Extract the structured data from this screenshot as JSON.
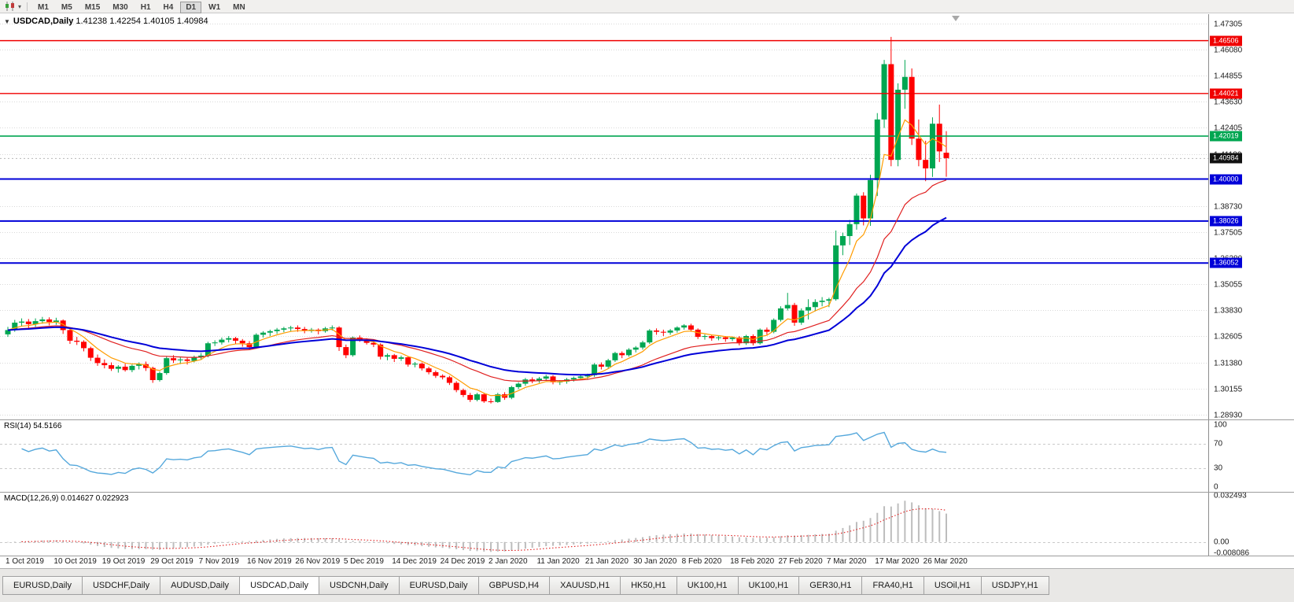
{
  "toolbar": {
    "timeframes": [
      "M1",
      "M5",
      "M15",
      "M30",
      "H1",
      "H4",
      "D1",
      "W1",
      "MN"
    ],
    "active_timeframe": "D1",
    "dropdown_glyph": "▾"
  },
  "chart": {
    "collapse_glyph": "▼",
    "symbol_title": "USDCAD,Daily",
    "ohlc_text": "1.41238 1.42254 1.40105 1.40984",
    "current_price": "1.40984",
    "current_price_badge_color": "#111111",
    "price_ticks": [
      "1.47305",
      "1.46080",
      "1.44855",
      "1.43630",
      "1.42405",
      "1.41180",
      "1.38730",
      "1.37505",
      "1.36280",
      "1.35055",
      "1.33830",
      "1.32605",
      "1.31380",
      "1.30155",
      "1.28930"
    ],
    "levels": [
      {
        "value": 1.46506,
        "label": "1.46506",
        "color": "#F00000",
        "width": 1.4
      },
      {
        "value": 1.44021,
        "label": "1.44021",
        "color": "#F00000",
        "width": 1.4
      },
      {
        "value": 1.42019,
        "label": "1.42019",
        "color": "#00A651",
        "width": 1.6
      },
      {
        "value": 1.4,
        "label": "1.40000",
        "color": "#0000D8",
        "width": 2
      },
      {
        "value": 1.38026,
        "label": "1.38026",
        "color": "#0000D8",
        "width": 2
      },
      {
        "value": 1.36052,
        "label": "1.36052",
        "color": "#0000D8",
        "width": 2
      }
    ]
  },
  "rsi": {
    "title": "RSI(14)",
    "value_text": "54.5166",
    "ticks": [
      "100",
      "70",
      "30",
      "0"
    ],
    "levels": [
      70,
      30
    ],
    "line_color": "#55A8DC"
  },
  "macd": {
    "title": "MACD(12,26,9)",
    "value_text": "0.014627 0.022923",
    "ticks": [
      "0.032493",
      "0.00",
      "-0.008086"
    ],
    "histogram_color": "#BDBDBD",
    "signal_color": "#E02020"
  },
  "tabs": {
    "active_index": 3,
    "items": [
      "EURUSD,Daily",
      "USDCHF,Daily",
      "AUDUSD,Daily",
      "USDCAD,Daily",
      "USDCNH,Daily",
      "EURUSD,Daily",
      "GBPUSD,H4",
      "XAUUSD,H1",
      "HK50,H1",
      "UK100,H1",
      "UK100,H1",
      "GER30,H1",
      "FRA40,H1",
      "USOil,H1",
      "USDJPY,H1"
    ]
  },
  "chart_data": {
    "type": "candlestick",
    "symbol": "USDCAD",
    "timeframe": "Daily",
    "price_range": [
      1.287,
      1.4775
    ],
    "label_every": 7,
    "x_labels": [
      "1 Oct 2019",
      "10 Oct 2019",
      "19 Oct 2019",
      "29 Oct 2019",
      "7 Nov 2019",
      "16 Nov 2019",
      "26 Nov 2019",
      "5 Dec 2019",
      "14 Dec 2019",
      "24 Dec 2019",
      "2 Jan 2020",
      "11 Jan 2020",
      "21 Jan 2020",
      "30 Jan 2020",
      "8 Feb 2020",
      "18 Feb 2020",
      "27 Feb 2020",
      "7 Mar 2020",
      "17 Mar 2020",
      "26 Mar 2020"
    ],
    "bull_color": "#00A651",
    "bear_color": "#FF0000",
    "ma_colors": [
      "#FF9C00",
      "#E02020",
      "#0000D8"
    ],
    "candles": [
      [
        1.327,
        1.3305,
        1.3258,
        1.329
      ],
      [
        1.329,
        1.3338,
        1.3282,
        1.3325
      ],
      [
        1.3325,
        1.3345,
        1.3308,
        1.333
      ],
      [
        1.333,
        1.3342,
        1.33,
        1.3318
      ],
      [
        1.3318,
        1.3345,
        1.3305,
        1.3332
      ],
      [
        1.3332,
        1.3352,
        1.332,
        1.334
      ],
      [
        1.334,
        1.335,
        1.3312,
        1.3328
      ],
      [
        1.3328,
        1.3348,
        1.3315,
        1.3335
      ],
      [
        1.3335,
        1.334,
        1.3272,
        1.329
      ],
      [
        1.329,
        1.3298,
        1.3225,
        1.324
      ],
      [
        1.324,
        1.3258,
        1.322,
        1.3235
      ],
      [
        1.3235,
        1.3242,
        1.319,
        1.3205
      ],
      [
        1.3205,
        1.3212,
        1.3145,
        1.316
      ],
      [
        1.316,
        1.3175,
        1.3122,
        1.3135
      ],
      [
        1.3135,
        1.3152,
        1.311,
        1.3125
      ],
      [
        1.3125,
        1.3138,
        1.3098,
        1.3108
      ],
      [
        1.3108,
        1.3125,
        1.309,
        1.3118
      ],
      [
        1.3118,
        1.3132,
        1.3095,
        1.3102
      ],
      [
        1.3102,
        1.3128,
        1.3092,
        1.3122
      ],
      [
        1.3122,
        1.3138,
        1.3105,
        1.313
      ],
      [
        1.313,
        1.3142,
        1.3098,
        1.3112
      ],
      [
        1.3112,
        1.3118,
        1.3042,
        1.3055
      ],
      [
        1.3055,
        1.3095,
        1.3048,
        1.3088
      ],
      [
        1.3088,
        1.3168,
        1.308,
        1.3158
      ],
      [
        1.3158,
        1.3172,
        1.3135,
        1.3148
      ],
      [
        1.3148,
        1.3162,
        1.313,
        1.3152
      ],
      [
        1.3152,
        1.316,
        1.3128,
        1.3145
      ],
      [
        1.3145,
        1.317,
        1.3138,
        1.3162
      ],
      [
        1.3162,
        1.3182,
        1.315,
        1.317
      ],
      [
        1.317,
        1.3235,
        1.3162,
        1.3228
      ],
      [
        1.3228,
        1.3242,
        1.3215,
        1.3232
      ],
      [
        1.3232,
        1.3255,
        1.3222,
        1.3245
      ],
      [
        1.3245,
        1.3262,
        1.3232,
        1.3252
      ],
      [
        1.3252,
        1.3258,
        1.3225,
        1.324
      ],
      [
        1.324,
        1.3248,
        1.3212,
        1.3228
      ],
      [
        1.3228,
        1.3238,
        1.3198,
        1.321
      ],
      [
        1.321,
        1.3275,
        1.3202,
        1.3268
      ],
      [
        1.3268,
        1.3285,
        1.3255,
        1.3278
      ],
      [
        1.3278,
        1.3292,
        1.3262,
        1.3285
      ],
      [
        1.3285,
        1.33,
        1.3272,
        1.3292
      ],
      [
        1.3292,
        1.3305,
        1.328,
        1.3298
      ],
      [
        1.3298,
        1.331,
        1.3285,
        1.3302
      ],
      [
        1.3302,
        1.3312,
        1.3282,
        1.3295
      ],
      [
        1.3295,
        1.3305,
        1.3275,
        1.3288
      ],
      [
        1.3288,
        1.33,
        1.3278,
        1.3292
      ],
      [
        1.3292,
        1.3298,
        1.327,
        1.3285
      ],
      [
        1.3285,
        1.3305,
        1.3278,
        1.3298
      ],
      [
        1.3298,
        1.3312,
        1.3288,
        1.3302
      ],
      [
        1.3302,
        1.3308,
        1.3192,
        1.321
      ],
      [
        1.321,
        1.3222,
        1.3158,
        1.3172
      ],
      [
        1.3172,
        1.326,
        1.3165,
        1.3255
      ],
      [
        1.3255,
        1.3265,
        1.3235,
        1.3242
      ],
      [
        1.3242,
        1.3252,
        1.3222,
        1.323
      ],
      [
        1.323,
        1.324,
        1.321,
        1.3222
      ],
      [
        1.3222,
        1.3228,
        1.3152,
        1.3165
      ],
      [
        1.3165,
        1.318,
        1.3148,
        1.3172
      ],
      [
        1.3172,
        1.3178,
        1.314,
        1.3155
      ],
      [
        1.3155,
        1.317,
        1.3145,
        1.3162
      ],
      [
        1.3162,
        1.3168,
        1.3118,
        1.3128
      ],
      [
        1.3128,
        1.314,
        1.3115,
        1.3132
      ],
      [
        1.3132,
        1.3138,
        1.31,
        1.311
      ],
      [
        1.311,
        1.3118,
        1.3082,
        1.3092
      ],
      [
        1.3092,
        1.31,
        1.3065,
        1.3075
      ],
      [
        1.3075,
        1.3082,
        1.3058,
        1.3068
      ],
      [
        1.3068,
        1.3075,
        1.3032,
        1.3042
      ],
      [
        1.3042,
        1.305,
        1.2998,
        1.3008
      ],
      [
        1.3008,
        1.3015,
        1.2975,
        1.2985
      ],
      [
        1.2985,
        1.2995,
        1.2952,
        1.2962
      ],
      [
        1.2962,
        1.2995,
        1.2955,
        1.2988
      ],
      [
        1.2988,
        1.2992,
        1.2948,
        1.2955
      ],
      [
        1.2955,
        1.2968,
        1.2945,
        1.2952
      ],
      [
        1.2952,
        1.2995,
        1.2948,
        1.2988
      ],
      [
        1.2988,
        1.2998,
        1.2962,
        1.2972
      ],
      [
        1.2972,
        1.3028,
        1.2965,
        1.3022
      ],
      [
        1.3022,
        1.3045,
        1.3012,
        1.3038
      ],
      [
        1.3038,
        1.3065,
        1.3028,
        1.3058
      ],
      [
        1.3058,
        1.3068,
        1.304,
        1.3052
      ],
      [
        1.3052,
        1.307,
        1.3042,
        1.3062
      ],
      [
        1.3062,
        1.308,
        1.3052,
        1.3072
      ],
      [
        1.3072,
        1.3078,
        1.3035,
        1.3045
      ],
      [
        1.3045,
        1.3055,
        1.3032,
        1.3048
      ],
      [
        1.3048,
        1.3065,
        1.3038,
        1.3058
      ],
      [
        1.3058,
        1.3072,
        1.3048,
        1.3065
      ],
      [
        1.3065,
        1.3078,
        1.3055,
        1.3072
      ],
      [
        1.3072,
        1.3085,
        1.306,
        1.3078
      ],
      [
        1.3078,
        1.3135,
        1.307,
        1.3128
      ],
      [
        1.3128,
        1.3138,
        1.3105,
        1.3118
      ],
      [
        1.3118,
        1.3155,
        1.311,
        1.3148
      ],
      [
        1.3148,
        1.3188,
        1.314,
        1.3182
      ],
      [
        1.3182,
        1.319,
        1.3158,
        1.3172
      ],
      [
        1.3172,
        1.3205,
        1.3165,
        1.3198
      ],
      [
        1.3198,
        1.3215,
        1.3185,
        1.3208
      ],
      [
        1.3208,
        1.324,
        1.3198,
        1.3232
      ],
      [
        1.3232,
        1.3295,
        1.3225,
        1.3288
      ],
      [
        1.3288,
        1.3298,
        1.3268,
        1.3282
      ],
      [
        1.3282,
        1.3292,
        1.3262,
        1.3278
      ],
      [
        1.3278,
        1.3295,
        1.3268,
        1.3288
      ],
      [
        1.3288,
        1.3308,
        1.3278,
        1.3302
      ],
      [
        1.3302,
        1.3318,
        1.3292,
        1.3312
      ],
      [
        1.3312,
        1.332,
        1.3282,
        1.3292
      ],
      [
        1.3292,
        1.3298,
        1.3248,
        1.3258
      ],
      [
        1.3258,
        1.327,
        1.3245,
        1.3262
      ],
      [
        1.3262,
        1.3268,
        1.324,
        1.3252
      ],
      [
        1.3252,
        1.3262,
        1.3242,
        1.3256
      ],
      [
        1.3256,
        1.3262,
        1.3235,
        1.3248
      ],
      [
        1.3248,
        1.326,
        1.3238,
        1.3255
      ],
      [
        1.3255,
        1.3262,
        1.3218,
        1.3228
      ],
      [
        1.3228,
        1.3268,
        1.322,
        1.3262
      ],
      [
        1.3262,
        1.327,
        1.3218,
        1.3228
      ],
      [
        1.3228,
        1.3298,
        1.3222,
        1.3292
      ],
      [
        1.3292,
        1.3302,
        1.3268,
        1.3282
      ],
      [
        1.3282,
        1.3345,
        1.3275,
        1.3338
      ],
      [
        1.3338,
        1.3402,
        1.333,
        1.3392
      ],
      [
        1.3392,
        1.3465,
        1.3382,
        1.3408
      ],
      [
        1.3408,
        1.3418,
        1.331,
        1.3325
      ],
      [
        1.3325,
        1.3392,
        1.3315,
        1.3382
      ],
      [
        1.3382,
        1.3435,
        1.334,
        1.3398
      ],
      [
        1.3398,
        1.3435,
        1.3378,
        1.3422
      ],
      [
        1.3422,
        1.3445,
        1.3402,
        1.3428
      ],
      [
        1.3428,
        1.3442,
        1.3398,
        1.3435
      ],
      [
        1.3435,
        1.3758,
        1.3428,
        1.3688
      ],
      [
        1.3688,
        1.3748,
        1.3642,
        1.3732
      ],
      [
        1.3732,
        1.3808,
        1.369,
        1.3788
      ],
      [
        1.3788,
        1.3932,
        1.3762,
        1.3922
      ],
      [
        1.3922,
        1.3938,
        1.3782,
        1.3815
      ],
      [
        1.3815,
        1.402,
        1.378,
        1.3995
      ],
      [
        1.3995,
        1.431,
        1.392,
        1.428
      ],
      [
        1.428,
        1.456,
        1.424,
        1.454
      ],
      [
        1.454,
        1.4668,
        1.406,
        1.409
      ],
      [
        1.409,
        1.445,
        1.406,
        1.442
      ],
      [
        1.442,
        1.456,
        1.433,
        1.448
      ],
      [
        1.448,
        1.452,
        1.416,
        1.419
      ],
      [
        1.419,
        1.428,
        1.406,
        1.409
      ],
      [
        1.409,
        1.418,
        1.399,
        1.405
      ],
      [
        1.405,
        1.429,
        1.401,
        1.426
      ],
      [
        1.426,
        1.435,
        1.408,
        1.413
      ],
      [
        1.41238,
        1.42254,
        1.40105,
        1.40984
      ]
    ]
  }
}
